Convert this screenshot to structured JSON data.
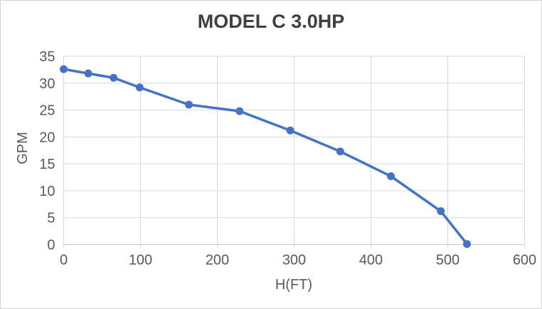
{
  "chart_data": {
    "type": "line",
    "title": "MODEL C 3.0HP",
    "xlabel": "H(FT)",
    "ylabel": "GPM",
    "x": [
      0,
      32,
      65,
      99,
      163,
      229,
      295,
      360,
      426,
      491,
      525
    ],
    "y": [
      32.6,
      31.8,
      31.0,
      29.2,
      26.0,
      24.8,
      21.2,
      17.3,
      12.7,
      6.2,
      0.1
    ],
    "xlim": [
      0,
      600
    ],
    "ylim": [
      0,
      35
    ],
    "xticks": [
      0,
      100,
      200,
      300,
      400,
      500,
      600
    ],
    "yticks": [
      0,
      5,
      10,
      15,
      20,
      25,
      30,
      35
    ],
    "grid": true,
    "legend": false,
    "colors": {
      "series": "#4472C4",
      "gridline": "#D9D9D9",
      "axis_line": "#C9C9C9",
      "tick_label": "#595959",
      "axis_title": "#595959",
      "title": "#3F3F3F"
    }
  }
}
